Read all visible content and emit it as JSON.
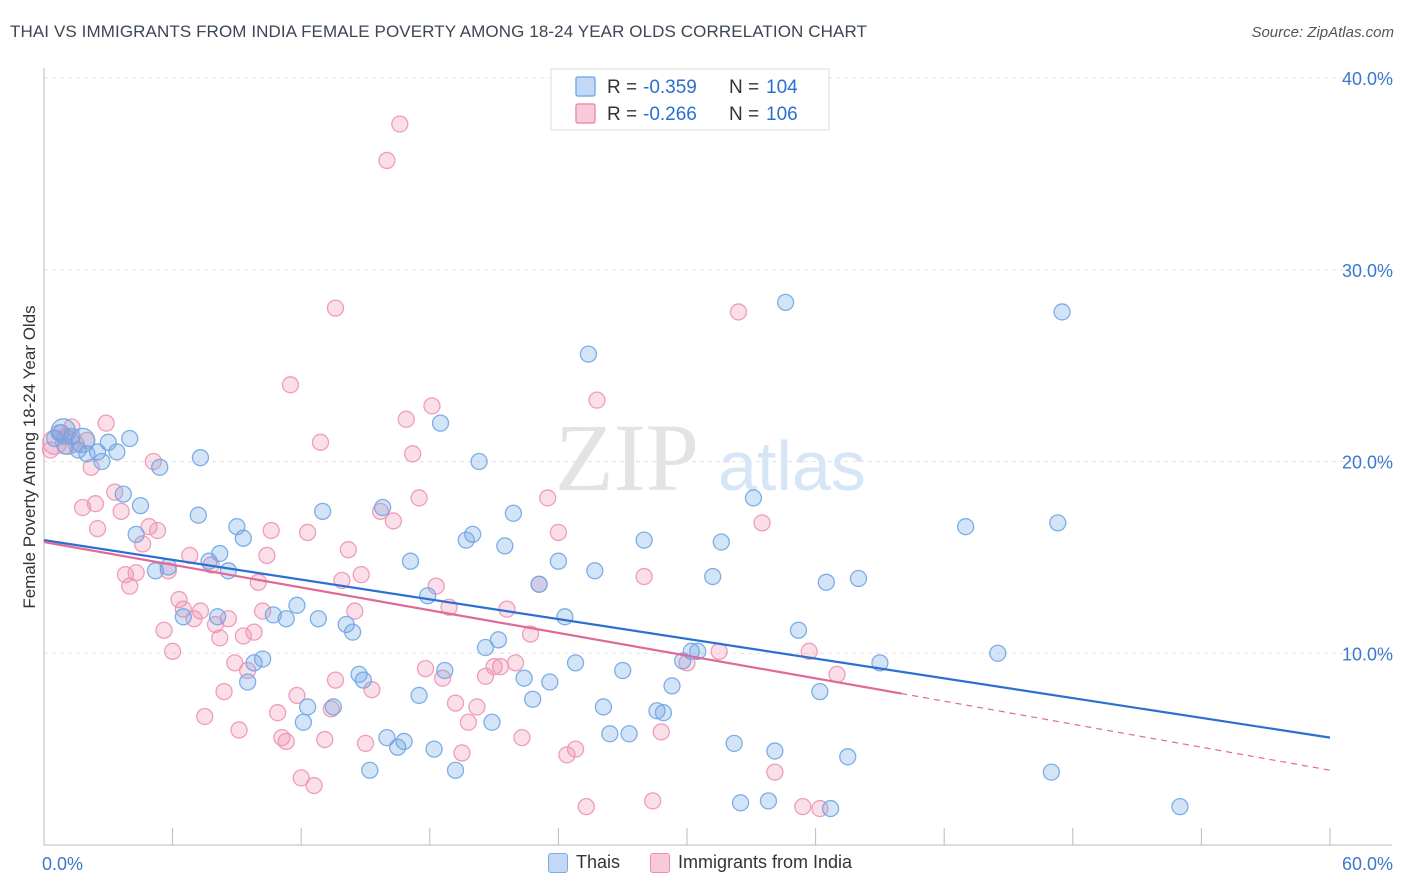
{
  "header": {
    "title": "THAI VS IMMIGRANTS FROM INDIA FEMALE POVERTY AMONG 18-24 YEAR OLDS CORRELATION CHART",
    "source": "Source: ZipAtlas.com"
  },
  "watermark": {
    "zip": "ZIP",
    "atlas": "atlas"
  },
  "stats_legend": [
    {
      "r_label": "R =",
      "r_value": "-0.359",
      "n_label": "N =",
      "n_value": "104",
      "color": "#7aaee8",
      "fill": "#c3d8f5"
    },
    {
      "r_label": "R =",
      "r_value": "-0.266",
      "n_label": "N =",
      "n_value": "106",
      "color": "#ee8fb0",
      "fill": "#f8c9d8"
    }
  ],
  "chart_data": {
    "type": "scatter",
    "xlabel": "",
    "ylabel": "Female Poverty Among 18-24 Year Olds",
    "xlim": [
      0,
      60
    ],
    "ylim": [
      0,
      40
    ],
    "x_tick_labels": [
      "0.0%",
      "60.0%"
    ],
    "y_ticks": [
      10,
      20,
      30,
      40
    ],
    "y_tick_labels": [
      "10.0%",
      "20.0%",
      "30.0%",
      "40.0%"
    ],
    "grid": true,
    "legend_position": "bottom",
    "series": [
      {
        "name": "Thais",
        "color": "#6fa6e6",
        "line_color": "#2b6fd1",
        "trend": {
          "x0": 0,
          "y0": 15.9,
          "x1": 60,
          "y1": 5.6
        },
        "points": [
          [
            0.5,
            21.2
          ],
          [
            0.8,
            21.5
          ],
          [
            1.0,
            20.8
          ],
          [
            1.3,
            21.3
          ],
          [
            1.6,
            20.6
          ],
          [
            2.0,
            20.4
          ],
          [
            2.5,
            20.5
          ],
          [
            3.0,
            21.0
          ],
          [
            3.4,
            20.5
          ],
          [
            2.7,
            20.0
          ],
          [
            4.0,
            21.2
          ],
          [
            3.7,
            18.3
          ],
          [
            4.5,
            17.7
          ],
          [
            5.4,
            19.7
          ],
          [
            7.2,
            17.2
          ],
          [
            7.3,
            20.2
          ],
          [
            4.3,
            16.2
          ],
          [
            5.2,
            14.3
          ],
          [
            5.8,
            14.5
          ],
          [
            6.5,
            11.9
          ],
          [
            7.7,
            14.8
          ],
          [
            8.1,
            11.9
          ],
          [
            8.2,
            15.2
          ],
          [
            8.6,
            14.3
          ],
          [
            9.0,
            16.6
          ],
          [
            9.3,
            16.0
          ],
          [
            9.5,
            8.5
          ],
          [
            9.8,
            9.5
          ],
          [
            10.2,
            9.7
          ],
          [
            10.7,
            12.0
          ],
          [
            11.3,
            11.8
          ],
          [
            11.8,
            12.5
          ],
          [
            12.1,
            6.4
          ],
          [
            12.3,
            7.2
          ],
          [
            12.8,
            11.8
          ],
          [
            13.0,
            17.4
          ],
          [
            13.5,
            7.2
          ],
          [
            14.1,
            11.5
          ],
          [
            14.4,
            11.1
          ],
          [
            14.7,
            8.9
          ],
          [
            14.9,
            8.6
          ],
          [
            15.2,
            3.9
          ],
          [
            15.8,
            17.6
          ],
          [
            16.0,
            5.6
          ],
          [
            16.5,
            5.1
          ],
          [
            16.8,
            5.4
          ],
          [
            17.1,
            14.8
          ],
          [
            17.5,
            7.8
          ],
          [
            17.9,
            13.0
          ],
          [
            18.2,
            5.0
          ],
          [
            18.5,
            22.0
          ],
          [
            18.7,
            9.1
          ],
          [
            19.2,
            3.9
          ],
          [
            19.7,
            15.9
          ],
          [
            20.0,
            16.2
          ],
          [
            20.3,
            20.0
          ],
          [
            20.6,
            10.3
          ],
          [
            20.9,
            6.4
          ],
          [
            21.2,
            10.7
          ],
          [
            21.5,
            15.6
          ],
          [
            21.9,
            17.3
          ],
          [
            22.4,
            8.7
          ],
          [
            22.8,
            7.6
          ],
          [
            23.1,
            13.6
          ],
          [
            23.6,
            8.5
          ],
          [
            24.0,
            14.8
          ],
          [
            24.3,
            11.9
          ],
          [
            24.8,
            9.5
          ],
          [
            25.4,
            25.6
          ],
          [
            25.7,
            14.3
          ],
          [
            26.1,
            7.2
          ],
          [
            26.4,
            5.8
          ],
          [
            27.0,
            9.1
          ],
          [
            27.3,
            5.8
          ],
          [
            28.0,
            15.9
          ],
          [
            28.6,
            7.0
          ],
          [
            28.9,
            6.9
          ],
          [
            29.3,
            8.3
          ],
          [
            29.8,
            9.6
          ],
          [
            30.2,
            10.1
          ],
          [
            30.5,
            10.1
          ],
          [
            31.2,
            14.0
          ],
          [
            31.6,
            15.8
          ],
          [
            32.2,
            5.3
          ],
          [
            32.5,
            2.2
          ],
          [
            33.1,
            18.1
          ],
          [
            33.8,
            2.3
          ],
          [
            34.1,
            4.9
          ],
          [
            34.6,
            28.3
          ],
          [
            35.2,
            11.2
          ],
          [
            36.2,
            8.0
          ],
          [
            36.5,
            13.7
          ],
          [
            36.7,
            1.9
          ],
          [
            37.5,
            4.6
          ],
          [
            38.0,
            13.9
          ],
          [
            39.0,
            9.5
          ],
          [
            43.0,
            16.6
          ],
          [
            44.5,
            10.0
          ],
          [
            47.3,
            16.8
          ],
          [
            47.5,
            27.8
          ],
          [
            47.0,
            3.8
          ],
          [
            53.0,
            2.0
          ],
          [
            0.9,
            21.6
          ],
          [
            1.8,
            21.1
          ]
        ]
      },
      {
        "name": "Immigrants from India",
        "color": "#ee93b4",
        "line_color": "#e0699a",
        "trend": {
          "x0": 0,
          "y0": 15.8,
          "x1": 40,
          "y1": 7.9
        },
        "trend_dashed": {
          "x0": 40,
          "y0": 7.9,
          "x1": 60,
          "y1": 3.9
        },
        "points": [
          [
            0.3,
            20.6
          ],
          [
            0.7,
            21.5
          ],
          [
            1.0,
            21.3
          ],
          [
            1.3,
            21.8
          ],
          [
            1.5,
            20.9
          ],
          [
            1.8,
            17.6
          ],
          [
            2.2,
            19.7
          ],
          [
            2.4,
            17.8
          ],
          [
            2.0,
            21.1
          ],
          [
            2.5,
            16.5
          ],
          [
            2.9,
            22.0
          ],
          [
            3.3,
            18.4
          ],
          [
            3.6,
            17.4
          ],
          [
            3.8,
            14.1
          ],
          [
            4.0,
            13.5
          ],
          [
            4.3,
            14.2
          ],
          [
            4.6,
            15.7
          ],
          [
            4.9,
            16.6
          ],
          [
            5.1,
            20.0
          ],
          [
            5.3,
            16.4
          ],
          [
            5.6,
            11.2
          ],
          [
            5.8,
            14.3
          ],
          [
            6.0,
            10.1
          ],
          [
            6.3,
            12.8
          ],
          [
            6.5,
            12.3
          ],
          [
            6.8,
            15.1
          ],
          [
            7.0,
            11.8
          ],
          [
            7.3,
            12.2
          ],
          [
            7.5,
            6.7
          ],
          [
            7.8,
            14.6
          ],
          [
            8.0,
            11.5
          ],
          [
            8.2,
            10.8
          ],
          [
            8.4,
            8.0
          ],
          [
            8.6,
            11.8
          ],
          [
            8.9,
            9.5
          ],
          [
            9.1,
            6.0
          ],
          [
            9.3,
            10.9
          ],
          [
            9.5,
            9.1
          ],
          [
            9.8,
            11.1
          ],
          [
            10.0,
            13.7
          ],
          [
            10.2,
            12.2
          ],
          [
            10.4,
            15.1
          ],
          [
            10.6,
            16.4
          ],
          [
            10.9,
            6.9
          ],
          [
            11.1,
            5.6
          ],
          [
            11.3,
            5.4
          ],
          [
            11.5,
            24.0
          ],
          [
            11.8,
            7.8
          ],
          [
            12.0,
            3.5
          ],
          [
            12.3,
            16.3
          ],
          [
            12.6,
            3.1
          ],
          [
            12.9,
            21.0
          ],
          [
            13.1,
            5.5
          ],
          [
            13.4,
            7.1
          ],
          [
            13.6,
            8.6
          ],
          [
            13.9,
            13.8
          ],
          [
            14.2,
            15.4
          ],
          [
            14.5,
            12.2
          ],
          [
            14.8,
            14.1
          ],
          [
            15.0,
            5.3
          ],
          [
            15.3,
            8.1
          ],
          [
            15.7,
            17.4
          ],
          [
            16.0,
            35.7
          ],
          [
            16.3,
            16.9
          ],
          [
            16.6,
            37.6
          ],
          [
            16.9,
            22.2
          ],
          [
            17.2,
            20.4
          ],
          [
            17.5,
            18.1
          ],
          [
            17.8,
            9.2
          ],
          [
            18.1,
            22.9
          ],
          [
            18.3,
            13.5
          ],
          [
            18.6,
            8.7
          ],
          [
            18.9,
            12.4
          ],
          [
            19.2,
            7.4
          ],
          [
            19.5,
            4.8
          ],
          [
            19.8,
            6.4
          ],
          [
            20.2,
            7.2
          ],
          [
            20.6,
            8.8
          ],
          [
            21.0,
            9.3
          ],
          [
            21.3,
            9.3
          ],
          [
            21.6,
            12.3
          ],
          [
            22.0,
            9.5
          ],
          [
            22.3,
            5.6
          ],
          [
            22.7,
            11.0
          ],
          [
            23.1,
            13.6
          ],
          [
            23.5,
            18.1
          ],
          [
            24.0,
            16.3
          ],
          [
            24.4,
            4.7
          ],
          [
            24.8,
            5.0
          ],
          [
            25.3,
            2.0
          ],
          [
            25.8,
            23.2
          ],
          [
            28.0,
            14.0
          ],
          [
            28.4,
            2.3
          ],
          [
            28.8,
            5.9
          ],
          [
            30.0,
            9.5
          ],
          [
            31.5,
            10.1
          ],
          [
            32.4,
            27.8
          ],
          [
            33.5,
            16.8
          ],
          [
            34.1,
            3.8
          ],
          [
            35.4,
            2.0
          ],
          [
            35.7,
            10.1
          ],
          [
            36.2,
            1.9
          ],
          [
            37.0,
            8.9
          ],
          [
            13.6,
            28.0
          ],
          [
            0.5,
            21.0
          ],
          [
            1.1,
            21.0
          ]
        ]
      }
    ]
  }
}
